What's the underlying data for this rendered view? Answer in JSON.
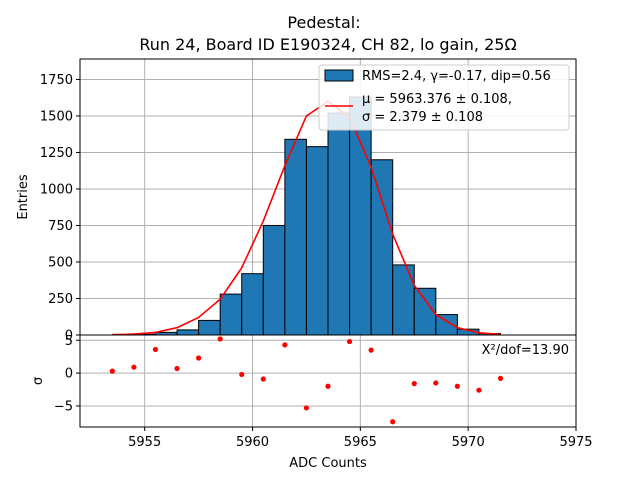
{
  "chart_data": [
    {
      "type": "bar",
      "title_line1": "Pedestal:",
      "title_line2": "Run 24, Board ID E190324, CH 82, lo gain, 25Ω",
      "ylabel": "Entries",
      "xlim": [
        5952,
        5975
      ],
      "ylim": [
        0,
        1890
      ],
      "yticks": [
        0,
        250,
        500,
        750,
        1000,
        1250,
        1500,
        1750
      ],
      "grid": true,
      "legend_position": "top-right",
      "histogram": {
        "name": "RMS=2.4, γ=-0.17, dip=0.56",
        "color": "#1f77b4",
        "bin_edges": [
          5953.5,
          5954.5,
          5955.5,
          5956.5,
          5957.5,
          5958.5,
          5959.5,
          5960.5,
          5961.5,
          5962.5,
          5963.5,
          5964.5,
          5965.5,
          5966.5,
          5967.5,
          5968.5,
          5969.5,
          5970.5,
          5971.5
        ],
        "counts": [
          3,
          5,
          18,
          35,
          100,
          280,
          420,
          750,
          1340,
          1290,
          1520,
          1630,
          1200,
          480,
          320,
          140,
          40,
          10
        ]
      },
      "fit": {
        "label_line1": "μ = 5963.376 ± 0.108,",
        "label_line2": "σ = 2.379 ± 0.108",
        "color": "#ff0000",
        "mu": 5963.376,
        "sigma": 2.379,
        "amplitude": 1600,
        "x": [
          5953.5,
          5954.5,
          5955.5,
          5956.5,
          5957.5,
          5958.5,
          5959.5,
          5960.5,
          5961.5,
          5962.5,
          5963.5,
          5964.5,
          5965.5,
          5966.5,
          5967.5,
          5968.5,
          5969.5,
          5970.5,
          5971.5
        ],
        "y": [
          2,
          6,
          18,
          50,
          120,
          245,
          460,
          780,
          1160,
          1500,
          1600,
          1490,
          1150,
          690,
          340,
          140,
          50,
          15,
          4
        ]
      }
    },
    {
      "type": "scatter",
      "xlabel": "ADC Counts",
      "ylabel": "σ",
      "xlim": [
        5952,
        5975
      ],
      "ylim": [
        -8.2,
        5.8
      ],
      "yticks": [
        -5,
        0,
        5
      ],
      "xticks": [
        5955,
        5960,
        5965,
        5970,
        5975
      ],
      "grid": true,
      "annotation": "X²/dof=13.90",
      "color": "#ff0000",
      "x": [
        5953.5,
        5954.5,
        5955.5,
        5956.5,
        5957.5,
        5958.5,
        5959.5,
        5960.5,
        5961.5,
        5962.5,
        5963.5,
        5964.5,
        5965.5,
        5966.5,
        5967.5,
        5968.5,
        5969.5,
        5970.5,
        5971.5
      ],
      "y": [
        0.3,
        0.9,
        3.6,
        0.7,
        2.3,
        5.2,
        -0.2,
        -0.9,
        4.3,
        -5.3,
        -2.0,
        4.8,
        3.5,
        -7.4,
        -1.6,
        -1.5,
        -2.0,
        -2.6,
        -0.8
      ]
    }
  ]
}
